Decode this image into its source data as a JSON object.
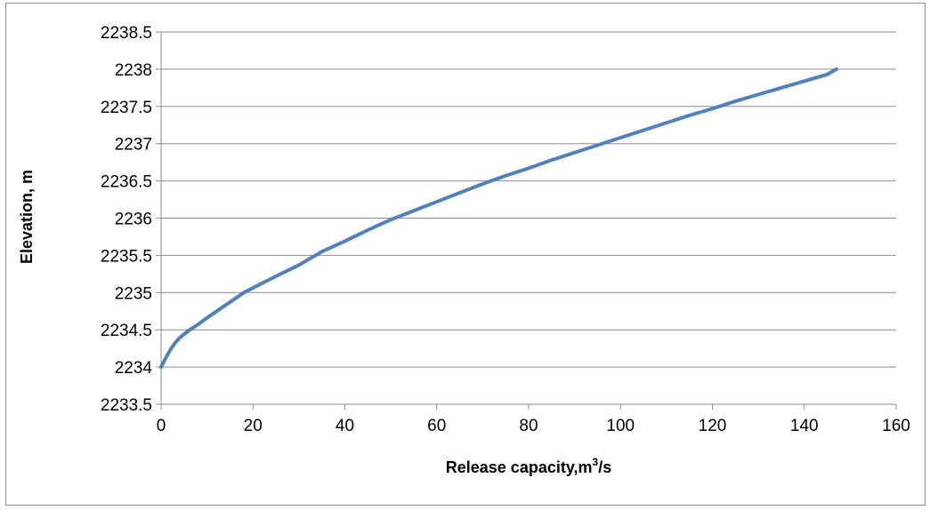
{
  "chart_data": {
    "type": "line",
    "title": "",
    "xlabel_main": "Release capacity,m",
    "xlabel_sup": "3",
    "xlabel_tail": "/s",
    "ylabel": "Elevation, m",
    "xlim": [
      0,
      160
    ],
    "ylim": [
      2233.5,
      2238.5
    ],
    "x_ticks": [
      "0",
      "20",
      "40",
      "60",
      "80",
      "100",
      "120",
      "140",
      "160"
    ],
    "y_ticks": [
      "2233.5",
      "2234",
      "2234.5",
      "2235",
      "2235.5",
      "2236",
      "2236.5",
      "2237",
      "2237.5",
      "2238",
      "2238.5"
    ],
    "grid": "horizontal",
    "legend": "none",
    "series": [
      {
        "color": "#4f81bd",
        "x": [
          0,
          1,
          2,
          3,
          4,
          5,
          6,
          8,
          10,
          14,
          18,
          25,
          30,
          35,
          40,
          45,
          50,
          55,
          60,
          65,
          70,
          75,
          80,
          85,
          90,
          95,
          100,
          105,
          110,
          115,
          120,
          125,
          130,
          135,
          140,
          145,
          147
        ],
        "y": [
          2234.0,
          2234.12,
          2234.23,
          2234.32,
          2234.39,
          2234.44,
          2234.49,
          2234.57,
          2234.66,
          2234.83,
          2235.0,
          2235.22,
          2235.37,
          2235.55,
          2235.69,
          2235.84,
          2235.98,
          2236.1,
          2236.22,
          2236.34,
          2236.46,
          2236.57,
          2236.67,
          2236.78,
          2236.88,
          2236.98,
          2237.08,
          2237.18,
          2237.28,
          2237.38,
          2237.47,
          2237.57,
          2237.66,
          2237.75,
          2237.84,
          2237.93,
          2238.0
        ]
      }
    ]
  }
}
